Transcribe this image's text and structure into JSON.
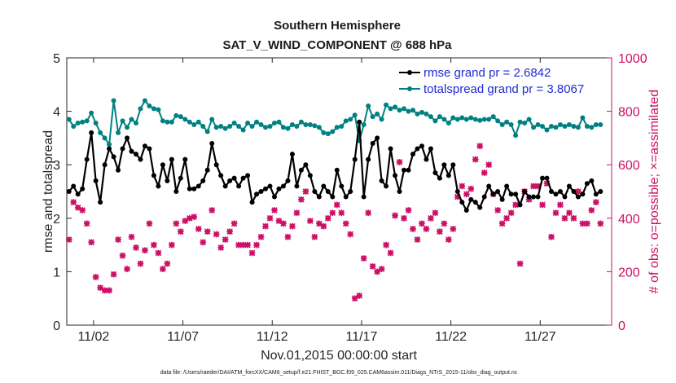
{
  "chart_data": {
    "type": "line",
    "title": "Southern Hemisphere",
    "subtitle": "SAT_V_WIND_COMPONENT @ 688 hPa",
    "xlabel": "Nov.01,2015 00:00:00 start",
    "ylabel_left": "rmse and totalspread",
    "ylabel_right": "# of obs: o=possible; ×=assimilated",
    "footnote": "data file: /Users/raeder/DAI/ATM_forcXX/CAM6_setup/f.e21.FHIST_BGC.f09_025.CAM6assim.011/Diags_NTrS_2015-11/obs_diag_output.nc",
    "xlim": [
      0.5,
      31.0
    ],
    "ylim_left": [
      0,
      5
    ],
    "ylim_right": [
      0,
      1000
    ],
    "x_ticks": [
      2,
      7,
      12,
      17,
      22,
      27
    ],
    "x_tick_labels": [
      "11/02",
      "11/07",
      "11/12",
      "11/17",
      "11/22",
      "11/27"
    ],
    "y_ticks_left": [
      0,
      1,
      2,
      3,
      4,
      5
    ],
    "y_tick_labels_left": [
      "0",
      "1",
      "2",
      "3",
      "4",
      "5"
    ],
    "y_ticks_right": [
      0,
      200,
      400,
      600,
      800,
      1000
    ],
    "y_tick_labels_right": [
      "0",
      "200",
      "400",
      "600",
      "800",
      "1000"
    ],
    "colors": {
      "rmse": "#000000",
      "spread": "#008080",
      "obs": "#cc1166",
      "legend_text": "#1f2bd6"
    },
    "legend": [
      {
        "name": "rmse",
        "label": "rmse grand pr = 2.6842"
      },
      {
        "name": "spread",
        "label": "totalspread grand pr = 3.8067"
      }
    ],
    "x": [
      0.625,
      0.875,
      1.125,
      1.375,
      1.625,
      1.875,
      2.125,
      2.375,
      2.625,
      2.875,
      3.125,
      3.375,
      3.625,
      3.875,
      4.125,
      4.375,
      4.625,
      4.875,
      5.125,
      5.375,
      5.625,
      5.875,
      6.125,
      6.375,
      6.625,
      6.875,
      7.125,
      7.375,
      7.625,
      7.875,
      8.125,
      8.375,
      8.625,
      8.875,
      9.125,
      9.375,
      9.625,
      9.875,
      10.125,
      10.375,
      10.625,
      10.875,
      11.125,
      11.375,
      11.625,
      11.875,
      12.125,
      12.375,
      12.625,
      12.875,
      13.125,
      13.375,
      13.625,
      13.875,
      14.125,
      14.375,
      14.625,
      14.875,
      15.125,
      15.375,
      15.625,
      15.875,
      16.125,
      16.375,
      16.625,
      16.875,
      17.125,
      17.375,
      17.625,
      17.875,
      18.125,
      18.375,
      18.625,
      18.875,
      19.125,
      19.375,
      19.625,
      19.875,
      20.125,
      20.375,
      20.625,
      20.875,
      21.125,
      21.375,
      21.625,
      21.875,
      22.125,
      22.375,
      22.625,
      22.875,
      23.125,
      23.375,
      23.625,
      23.875,
      24.125,
      24.375,
      24.625,
      24.875,
      25.125,
      25.375,
      25.625,
      25.875,
      26.125,
      26.375,
      26.625,
      26.875,
      27.125,
      27.375,
      27.625,
      27.875,
      28.125,
      28.375,
      28.625,
      28.875,
      29.125,
      29.375,
      29.625,
      29.875,
      30.125,
      30.375
    ],
    "series": [
      {
        "name": "rmse",
        "values": [
          2.5,
          2.6,
          2.45,
          2.55,
          3.1,
          3.6,
          2.7,
          2.3,
          3.0,
          3.3,
          3.15,
          2.9,
          3.3,
          3.5,
          3.25,
          3.2,
          3.1,
          3.35,
          3.3,
          2.8,
          2.6,
          3.0,
          2.7,
          3.1,
          2.5,
          2.75,
          3.1,
          2.55,
          2.55,
          2.6,
          2.7,
          2.9,
          3.4,
          3.0,
          2.8,
          2.6,
          2.7,
          2.75,
          2.6,
          2.75,
          2.8,
          2.3,
          2.45,
          2.5,
          2.55,
          2.6,
          2.4,
          2.55,
          2.6,
          2.7,
          3.2,
          2.6,
          2.9,
          3.0,
          2.8,
          2.5,
          2.4,
          2.6,
          2.5,
          2.4,
          2.9,
          2.6,
          2.4,
          2.5,
          3.1,
          3.8,
          2.4,
          3.1,
          3.4,
          3.5,
          2.7,
          2.6,
          3.3,
          2.8,
          2.5,
          2.9,
          2.9,
          3.2,
          3.3,
          3.35,
          3.1,
          3.3,
          2.85,
          2.75,
          3.0,
          2.8,
          3.0,
          2.5,
          2.3,
          2.15,
          2.35,
          2.3,
          2.2,
          2.4,
          2.6,
          2.45,
          2.5,
          2.35,
          2.6,
          2.45,
          2.45,
          2.25,
          2.5,
          2.4,
          2.4,
          2.4,
          2.75,
          2.75,
          2.5,
          2.45,
          2.5,
          2.4,
          2.6,
          2.5,
          2.4,
          2.45,
          2.65,
          2.7,
          2.45,
          2.5
        ]
      },
      {
        "name": "spread",
        "values": [
          3.85,
          3.72,
          3.78,
          3.8,
          3.82,
          3.97,
          3.78,
          3.6,
          3.5,
          3.38,
          4.2,
          3.6,
          3.82,
          3.7,
          3.85,
          3.78,
          4.05,
          4.2,
          4.1,
          4.05,
          4.03,
          3.82,
          3.8,
          3.8,
          3.92,
          3.9,
          3.85,
          3.8,
          3.75,
          3.8,
          3.72,
          3.62,
          3.85,
          3.7,
          3.72,
          3.68,
          3.72,
          3.78,
          3.72,
          3.65,
          3.78,
          3.72,
          3.8,
          3.75,
          3.7,
          3.72,
          3.78,
          3.8,
          3.7,
          3.68,
          3.75,
          3.72,
          3.8,
          3.75,
          3.75,
          3.73,
          3.7,
          3.6,
          3.58,
          3.62,
          3.7,
          3.72,
          3.82,
          3.85,
          3.93,
          3.45,
          3.75,
          4.1,
          3.9,
          3.95,
          3.85,
          4.12,
          4.05,
          4.08,
          4.02,
          4.05,
          4.0,
          4.02,
          3.95,
          3.98,
          3.95,
          3.9,
          3.82,
          3.9,
          3.85,
          3.78,
          3.88,
          3.85,
          3.88,
          3.85,
          3.88,
          3.85,
          3.83,
          3.85,
          3.85,
          3.9,
          3.82,
          3.75,
          3.8,
          3.75,
          3.55,
          3.8,
          3.78,
          3.85,
          3.7,
          3.75,
          3.72,
          3.65,
          3.72,
          3.7,
          3.75,
          3.72,
          3.75,
          3.72,
          3.7,
          3.88,
          3.72,
          3.7,
          3.75,
          3.75
        ]
      },
      {
        "name": "obs",
        "values": [
          320,
          460,
          440,
          430,
          380,
          310,
          180,
          140,
          130,
          130,
          190,
          320,
          260,
          210,
          330,
          290,
          230,
          280,
          380,
          300,
          270,
          210,
          230,
          300,
          380,
          350,
          390,
          400,
          405,
          360,
          310,
          350,
          430,
          340,
          290,
          320,
          350,
          380,
          300,
          300,
          300,
          270,
          300,
          330,
          370,
          400,
          430,
          390,
          380,
          330,
          370,
          420,
          470,
          500,
          390,
          330,
          380,
          370,
          400,
          420,
          450,
          420,
          380,
          340,
          100,
          110,
          250,
          420,
          220,
          200,
          210,
          300,
          270,
          410,
          610,
          400,
          430,
          360,
          320,
          380,
          360,
          400,
          420,
          350,
          380,
          320,
          360,
          480,
          520,
          490,
          510,
          620,
          670,
          570,
          600,
          490,
          430,
          380,
          400,
          420,
          450,
          230,
          500,
          470,
          520,
          520,
          450,
          530,
          330,
          420,
          450,
          400,
          420,
          400,
          500,
          380,
          380,
          430,
          460,
          380
        ]
      }
    ]
  }
}
